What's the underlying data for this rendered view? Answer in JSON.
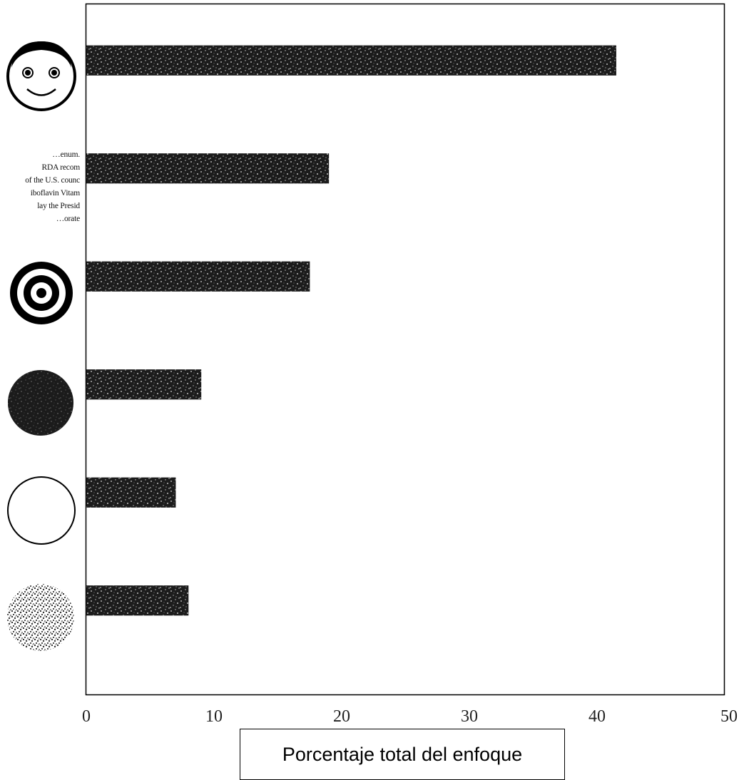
{
  "chart_data": {
    "type": "bar",
    "orientation": "horizontal",
    "categories": [
      "smiley-face",
      "printed-text",
      "bullseye",
      "dark-filled-circle",
      "empty-circle",
      "speckled-circle"
    ],
    "values": [
      41.5,
      19,
      17.5,
      9,
      7,
      8
    ],
    "xlabel": "Porcentaje total del enfoque",
    "xlim": [
      0,
      50
    ],
    "xticks": [
      0,
      10,
      20,
      30,
      40,
      50
    ],
    "grid": false,
    "bar_color": "#1a1a1a",
    "icons": {
      "newsprint_lines": [
        "…enum.",
        "RDA recom",
        "of the U.S. counc",
        "iboflavin Vitam",
        "lay the Presid",
        "…orate"
      ]
    }
  }
}
